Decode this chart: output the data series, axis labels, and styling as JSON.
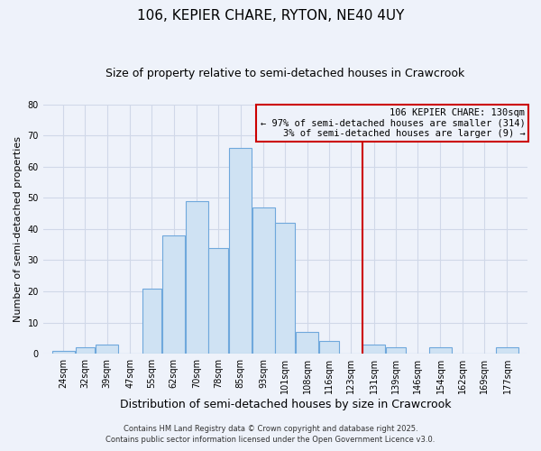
{
  "title": "106, KEPIER CHARE, RYTON, NE40 4UY",
  "subtitle": "Size of property relative to semi-detached houses in Crawcrook",
  "xlabel": "Distribution of semi-detached houses by size in Crawcrook",
  "ylabel": "Number of semi-detached properties",
  "bin_labels": [
    "24sqm",
    "32sqm",
    "39sqm",
    "47sqm",
    "55sqm",
    "62sqm",
    "70sqm",
    "78sqm",
    "85sqm",
    "93sqm",
    "101sqm",
    "108sqm",
    "116sqm",
    "123sqm",
    "131sqm",
    "139sqm",
    "146sqm",
    "154sqm",
    "162sqm",
    "169sqm",
    "177sqm"
  ],
  "bin_edges": [
    24,
    32,
    39,
    47,
    55,
    62,
    70,
    78,
    85,
    93,
    101,
    108,
    116,
    123,
    131,
    139,
    146,
    154,
    162,
    169,
    177,
    185
  ],
  "counts": [
    1,
    2,
    3,
    0,
    21,
    38,
    49,
    34,
    66,
    47,
    42,
    7,
    4,
    0,
    3,
    2,
    0,
    2,
    0,
    0,
    2
  ],
  "bar_facecolor": "#cfe2f3",
  "bar_edgecolor": "#6fa8dc",
  "property_line_x": 131,
  "property_line_color": "#cc0000",
  "annotation_text": "106 KEPIER CHARE: 130sqm\n← 97% of semi-detached houses are smaller (314)\n3% of semi-detached houses are larger (9) →",
  "annotation_box_edgecolor": "#cc0000",
  "ylim": [
    0,
    80
  ],
  "yticks": [
    0,
    10,
    20,
    30,
    40,
    50,
    60,
    70,
    80
  ],
  "grid_color": "#d0d8e8",
  "bg_color": "#eef2fa",
  "footer_line1": "Contains HM Land Registry data © Crown copyright and database right 2025.",
  "footer_line2": "Contains public sector information licensed under the Open Government Licence v3.0.",
  "title_fontsize": 11,
  "subtitle_fontsize": 9,
  "xlabel_fontsize": 9,
  "ylabel_fontsize": 8,
  "tick_fontsize": 7,
  "annotation_fontsize": 7.5,
  "footer_fontsize": 6
}
